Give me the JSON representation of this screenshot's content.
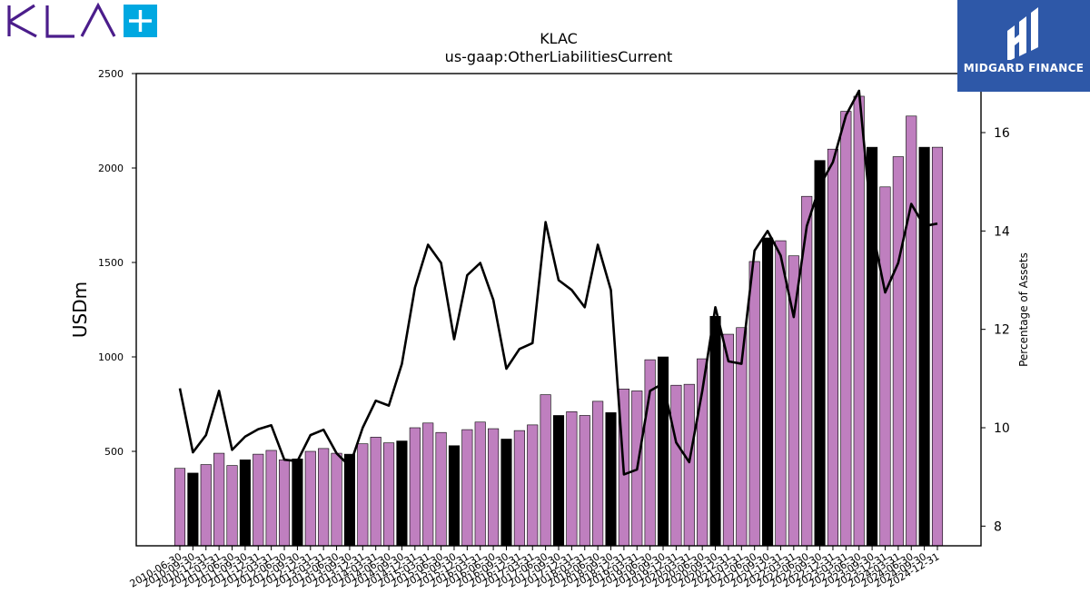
{
  "brand": {
    "logo_text": "KLA",
    "logo_color": "#4b1d8b",
    "plus_color": "#00a8e1",
    "watermark": "MIDGARD FINANCE",
    "watermark_bg": "#2e58a8"
  },
  "chart_data": {
    "type": "bar",
    "title": "KLAC",
    "subtitle": "us-gaap:OtherLiabilitiesCurrent",
    "ylabel": "USDm",
    "y2label": "Percentage of Assets",
    "ylim": [
      0,
      2500
    ],
    "y2lim": [
      7.6,
      17.2
    ],
    "yticks": [
      500,
      1000,
      1500,
      2000,
      2500
    ],
    "y2ticks": [
      8,
      10,
      12,
      14,
      16
    ],
    "colors": {
      "quarter": "#bf7fbf",
      "annual": "#000000",
      "line": "#000000"
    },
    "categories": [
      "2010-06-30",
      "2010-09-30",
      "2010-12-31",
      "2011-03-31",
      "2011-06-30",
      "2011-09-30",
      "2011-12-31",
      "2012-03-31",
      "2012-06-30",
      "2012-09-30",
      "2012-12-31",
      "2013-03-31",
      "2013-06-30",
      "2013-09-30",
      "2013-12-31",
      "2014-03-31",
      "2014-06-30",
      "2014-09-30",
      "2014-12-31",
      "2015-03-31",
      "2015-06-30",
      "2015-09-30",
      "2015-12-31",
      "2016-03-31",
      "2016-06-30",
      "2016-09-30",
      "2016-12-31",
      "2017-03-31",
      "2017-06-30",
      "2017-09-30",
      "2017-12-31",
      "2018-03-31",
      "2018-06-30",
      "2018-09-30",
      "2018-12-31",
      "2019-03-31",
      "2019-06-30",
      "2019-09-30",
      "2019-12-31",
      "2020-03-31",
      "2020-06-30",
      "2020-09-30",
      "2020-12-31",
      "2021-03-31",
      "2021-06-30",
      "2021-09-30",
      "2021-12-31",
      "2022-03-31",
      "2022-06-30",
      "2022-09-30",
      "2022-12-31",
      "2023-03-31",
      "2023-06-30",
      "2023-09-30",
      "2023-12-31",
      "2024-03-31",
      "2024-06-30",
      "2024-09-30",
      "2024-12-31"
    ],
    "series": [
      {
        "values": [
          410,
          385,
          430,
          490,
          425,
          455,
          485,
          505,
          455,
          460,
          500,
          515,
          490,
          485,
          540,
          575,
          545,
          555,
          625,
          650,
          600,
          530,
          615,
          655,
          620,
          565,
          610,
          640,
          800,
          690,
          710,
          690,
          765,
          705,
          830,
          820,
          985,
          1000,
          850,
          855,
          990,
          1215,
          1120,
          1155,
          1505,
          1630,
          1615,
          1535,
          1850,
          2040,
          2100,
          2300,
          2380,
          2110,
          1900,
          2060,
          2275,
          2110,
          2110
        ],
        "annual": [
          false,
          true,
          false,
          false,
          false,
          true,
          false,
          false,
          false,
          true,
          false,
          false,
          false,
          true,
          false,
          false,
          false,
          true,
          false,
          false,
          false,
          true,
          false,
          false,
          false,
          true,
          false,
          false,
          false,
          true,
          false,
          false,
          false,
          true,
          false,
          false,
          false,
          true,
          false,
          false,
          false,
          true,
          false,
          false,
          false,
          true,
          false,
          false,
          false,
          true,
          false,
          false,
          false,
          true,
          false,
          false,
          false,
          true,
          false
        ]
      },
      {
        "values": [
          10.8,
          9.5,
          9.85,
          10.75,
          9.55,
          9.82,
          9.97,
          10.05,
          9.35,
          9.32,
          9.85,
          9.96,
          9.48,
          9.22,
          10.0,
          10.55,
          10.45,
          11.3,
          12.85,
          13.72,
          13.35,
          11.8,
          13.1,
          13.35,
          12.6,
          11.2,
          11.6,
          11.72,
          14.18,
          13.0,
          12.8,
          12.45,
          13.72,
          12.8,
          9.05,
          9.15,
          10.75,
          10.9,
          9.7,
          9.3,
          10.75,
          12.45,
          11.35,
          11.3,
          13.6,
          14.0,
          13.5,
          12.25,
          14.1,
          14.92,
          15.4,
          16.35,
          16.85,
          14.05,
          12.75,
          13.35,
          14.55,
          14.1,
          14.15
        ]
      }
    ]
  }
}
